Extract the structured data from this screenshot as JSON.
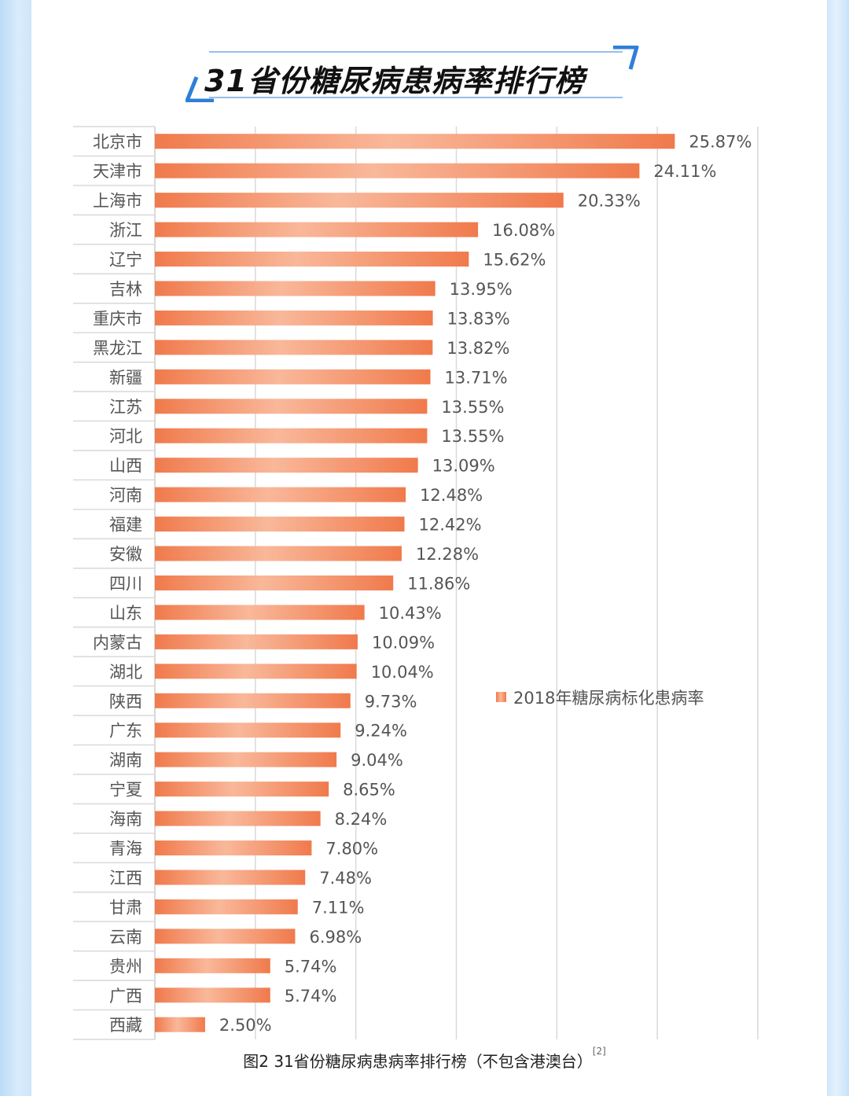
{
  "page": {
    "title": "31省份糖尿病患病率排行榜",
    "caption": "图2 31省份糖尿病患病率排行榜（不包含港澳台）",
    "caption_ref": "[2]"
  },
  "colors": {
    "bar_dark": "#f07a4c",
    "bar_light": "#f9b89a",
    "grid": "#d9d9d9",
    "label_text": "#555555",
    "title_accent": "#2f7fd6"
  },
  "chart_data": {
    "type": "bar",
    "orientation": "horizontal",
    "title": "31省份糖尿病患病率排行榜",
    "xlabel": "",
    "ylabel": "",
    "xlim": [
      0,
      30
    ],
    "grid": true,
    "legend_position": "right",
    "series": [
      {
        "name": "2018年糖尿病标化患病率",
        "values": [
          25.87,
          24.11,
          20.33,
          16.08,
          15.62,
          13.95,
          13.83,
          13.82,
          13.71,
          13.55,
          13.55,
          13.09,
          12.48,
          12.42,
          12.28,
          11.86,
          10.43,
          10.09,
          10.04,
          9.73,
          9.24,
          9.04,
          8.65,
          8.24,
          7.8,
          7.48,
          7.11,
          6.98,
          5.74,
          5.74,
          2.5
        ]
      }
    ],
    "categories": [
      "北京市",
      "天津市",
      "上海市",
      "浙江",
      "辽宁",
      "吉林",
      "重庆市",
      "黑龙江",
      "新疆",
      "江苏",
      "河北",
      "山西",
      "河南",
      "福建",
      "安徽",
      "四川",
      "山东",
      "内蒙古",
      "湖北",
      "陕西",
      "广东",
      "湖南",
      "宁夏",
      "海南",
      "青海",
      "江西",
      "甘肃",
      "云南",
      "贵州",
      "广西",
      "西藏"
    ],
    "value_labels": [
      "25.87%",
      "24.11%",
      "20.33%",
      "16.08%",
      "15.62%",
      "13.95%",
      "13.83%",
      "13.82%",
      "13.71%",
      "13.55%",
      "13.55%",
      "13.09%",
      "12.48%",
      "12.42%",
      "12.28%",
      "11.86%",
      "10.43%",
      "10.09%",
      "10.04%",
      "9.73%",
      "9.24%",
      "9.04%",
      "8.65%",
      "8.24%",
      "7.80%",
      "7.48%",
      "7.11%",
      "6.98%",
      "5.74%",
      "5.74%",
      "2.50%"
    ]
  }
}
